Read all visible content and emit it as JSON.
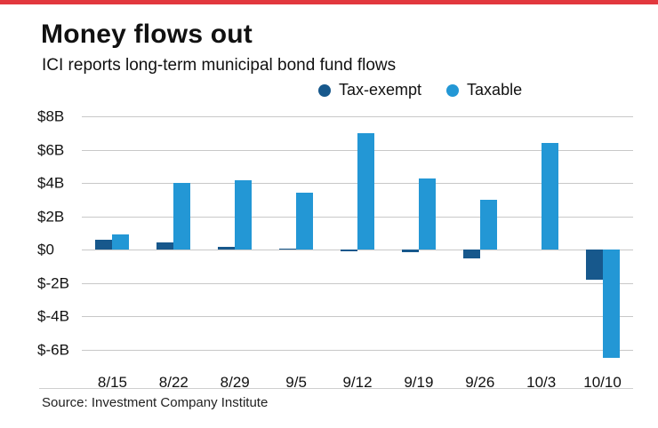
{
  "accent_color": "#e2383e",
  "chart_data": {
    "type": "bar",
    "title": "Money flows out",
    "subtitle": "ICI reports long-term municipal bond fund flows",
    "source": "Source: Investment Company Institute",
    "categories": [
      "8/15",
      "8/22",
      "8/29",
      "9/5",
      "9/12",
      "9/19",
      "9/26",
      "10/3",
      "10/10"
    ],
    "series": [
      {
        "name": "Tax-exempt",
        "color": "#17588c",
        "values": [
          0.6,
          0.45,
          0.2,
          0.05,
          -0.1,
          -0.15,
          -0.5,
          0,
          -1.8
        ]
      },
      {
        "name": "Taxable",
        "color": "#2397d5",
        "values": [
          0.9,
          4.0,
          4.15,
          3.4,
          7.0,
          4.25,
          3.0,
          6.4,
          -6.5
        ]
      }
    ],
    "yticks": [
      {
        "value": 8,
        "label": "$8B"
      },
      {
        "value": 6,
        "label": "$6B"
      },
      {
        "value": 4,
        "label": "$4B"
      },
      {
        "value": 2,
        "label": "$2B"
      },
      {
        "value": 0,
        "label": "$0"
      },
      {
        "value": -2,
        "label": "$-2B"
      },
      {
        "value": -4,
        "label": "$-4B"
      },
      {
        "value": -6,
        "label": "$-6B"
      }
    ],
    "ylim": [
      -6.8,
      8
    ],
    "grid": true,
    "legend_position": "top",
    "xlabel": "",
    "ylabel": ""
  }
}
